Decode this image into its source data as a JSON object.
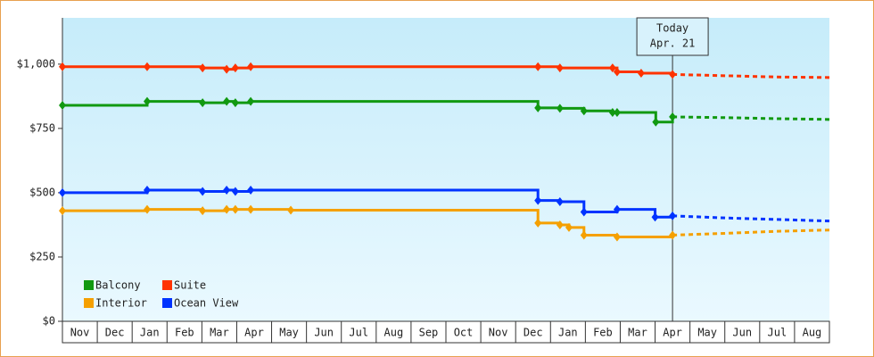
{
  "chart_data": {
    "type": "step-line",
    "categories": [
      "Nov",
      "Dec",
      "Jan",
      "Feb",
      "Mar",
      "Apr",
      "May",
      "Jun",
      "Jul",
      "Aug",
      "Sep",
      "Oct",
      "Nov",
      "Dec",
      "Jan",
      "Feb",
      "Mar",
      "Apr",
      "May",
      "Jun",
      "Jul",
      "Aug"
    ],
    "xlim": [
      0,
      22
    ],
    "ylim": [
      0,
      1180
    ],
    "yticks": [
      {
        "value": 0,
        "label": "$0"
      },
      {
        "value": 250,
        "label": "$250"
      },
      {
        "value": 500,
        "label": "$500"
      },
      {
        "value": 750,
        "label": "$750"
      },
      {
        "value": 1000,
        "label": "$1,000"
      }
    ],
    "today": {
      "x": 17.5,
      "label": "Today",
      "date": "Apr. 21"
    },
    "series": [
      {
        "name": "Balcony",
        "color": "#119911",
        "x": [
          0,
          2.43,
          4.02,
          4.71,
          4.96,
          5.4,
          13.64,
          14.27,
          14.96,
          15.78,
          15.91,
          17.02,
          17.5
        ],
        "values": [
          840,
          855,
          850,
          855,
          850,
          855,
          830,
          828,
          818,
          812,
          812,
          775,
          795
        ],
        "forecast_x": [
          17.5,
          19,
          20.5,
          22
        ],
        "forecast_values": [
          795,
          792,
          788,
          785
        ]
      },
      {
        "name": "Suite",
        "color": "#ff3300",
        "x": [
          0,
          2.43,
          4.02,
          4.71,
          4.96,
          5.4,
          13.64,
          14.27,
          15.78,
          15.91,
          16.6,
          17.5
        ],
        "values": [
          990,
          990,
          985,
          980,
          985,
          990,
          990,
          985,
          985,
          970,
          965,
          960
        ],
        "forecast_x": [
          17.5,
          19,
          20.5,
          22
        ],
        "forecast_values": [
          960,
          955,
          950,
          948
        ]
      },
      {
        "name": "Interior",
        "color": "#f5a000",
        "x": [
          0,
          2.43,
          4.02,
          4.71,
          4.96,
          5.4,
          6.55,
          13.64,
          14.27,
          14.53,
          14.96,
          15.91,
          17.5
        ],
        "values": [
          430,
          435,
          430,
          435,
          435,
          435,
          432,
          382,
          375,
          365,
          335,
          328,
          335
        ],
        "forecast_x": [
          17.5,
          19,
          20.5,
          22
        ],
        "forecast_values": [
          335,
          342,
          350,
          355
        ]
      },
      {
        "name": "Ocean View",
        "color": "#0033ff",
        "x": [
          0,
          2.43,
          4.02,
          4.71,
          4.96,
          5.4,
          13.64,
          14.27,
          14.96,
          15.91,
          17.0,
          17.5
        ],
        "values": [
          500,
          510,
          505,
          510,
          505,
          510,
          470,
          465,
          425,
          435,
          405,
          410
        ],
        "forecast_x": [
          17.5,
          19,
          20.5,
          22
        ],
        "forecast_values": [
          410,
          402,
          396,
          390
        ]
      }
    ]
  }
}
